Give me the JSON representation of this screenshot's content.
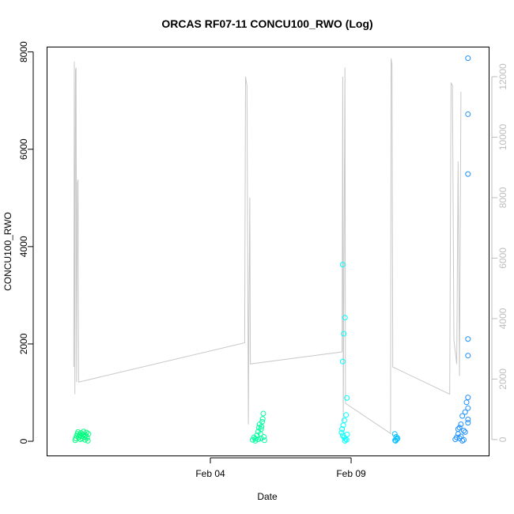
{
  "chart_data": {
    "type": "scatter",
    "title": "ORCAS RF07-11 CONCU100_RWO (Log)",
    "xlabel": "Date",
    "ylabel": "CONCU100_RWO",
    "x_ticks": [
      {
        "label": "Feb 04",
        "day": 4.0
      },
      {
        "label": "Feb 09",
        "day": 9.0
      }
    ],
    "xlim_days": [
      -1.8,
      13.9
    ],
    "ylim": [
      -300,
      8100
    ],
    "y_ticks": [
      0,
      2000,
      4000,
      6000,
      8000
    ],
    "y2lim": [
      -540,
      12980
    ],
    "y2_ticks": [
      0,
      2000,
      4000,
      6000,
      8000,
      10000,
      12000
    ],
    "y2_color": "#bdbdbd",
    "grid": false,
    "legend": "none",
    "series": [
      {
        "color": "#00ff7f",
        "points": [
          [
            -0.8,
            20
          ],
          [
            -0.78,
            60
          ],
          [
            -0.75,
            110
          ],
          [
            -0.72,
            150
          ],
          [
            -0.7,
            190
          ],
          [
            -0.68,
            80
          ],
          [
            -0.65,
            130
          ],
          [
            -0.62,
            40
          ],
          [
            -0.6,
            170
          ],
          [
            -0.58,
            100
          ],
          [
            -0.55,
            60
          ],
          [
            -0.52,
            140
          ],
          [
            -0.5,
            200
          ],
          [
            -0.48,
            90
          ],
          [
            -0.45,
            30
          ],
          [
            -0.42,
            120
          ],
          [
            -0.4,
            180
          ],
          [
            -0.38,
            70
          ],
          [
            -0.35,
            10
          ],
          [
            -0.33,
            150
          ]
        ]
      },
      {
        "color": "#00ff9f",
        "points": [
          [
            5.5,
            30
          ],
          [
            5.55,
            80
          ],
          [
            5.6,
            50
          ],
          [
            5.65,
            120
          ],
          [
            5.7,
            200
          ],
          [
            5.72,
            280
          ],
          [
            5.75,
            350
          ],
          [
            5.78,
            150
          ],
          [
            5.8,
            60
          ],
          [
            5.82,
            300
          ],
          [
            5.84,
            400
          ],
          [
            5.86,
            460
          ],
          [
            5.88,
            570
          ],
          [
            5.9,
            90
          ],
          [
            5.92,
            20
          ],
          [
            5.6,
            10
          ],
          [
            5.7,
            40
          ],
          [
            5.8,
            250
          ]
        ]
      },
      {
        "color": "#00ffff",
        "points": [
          [
            8.7,
            3630
          ],
          [
            8.74,
            2210
          ],
          [
            8.78,
            2540
          ],
          [
            8.7,
            1640
          ],
          [
            8.85,
            890
          ],
          [
            8.82,
            540
          ],
          [
            8.76,
            430
          ],
          [
            8.72,
            330
          ],
          [
            8.68,
            250
          ],
          [
            8.66,
            180
          ],
          [
            8.7,
            120
          ],
          [
            8.75,
            80
          ],
          [
            8.8,
            50
          ],
          [
            8.84,
            30
          ],
          [
            8.78,
            10
          ],
          [
            8.86,
            140
          ]
        ]
      },
      {
        "color": "#00bfff",
        "points": [
          [
            10.55,
            150
          ],
          [
            10.6,
            90
          ],
          [
            10.62,
            40
          ],
          [
            10.58,
            10
          ],
          [
            10.65,
            60
          ],
          [
            10.56,
            20
          ]
        ]
      },
      {
        "color": "#1e90ff",
        "points": [
          [
            13.15,
            7870
          ],
          [
            13.15,
            6720
          ],
          [
            13.15,
            5490
          ],
          [
            13.15,
            2100
          ],
          [
            13.15,
            1760
          ],
          [
            13.15,
            900
          ],
          [
            13.1,
            800
          ],
          [
            13.15,
            680
          ],
          [
            13.05,
            600
          ],
          [
            12.95,
            520
          ],
          [
            13.15,
            450
          ],
          [
            12.9,
            350
          ],
          [
            12.85,
            280
          ],
          [
            13.0,
            220
          ],
          [
            12.8,
            150
          ],
          [
            12.9,
            100
          ],
          [
            12.85,
            60
          ],
          [
            13.0,
            30
          ],
          [
            12.95,
            10
          ],
          [
            12.75,
            80
          ],
          [
            12.7,
            40
          ],
          [
            13.05,
            190
          ],
          [
            12.8,
            250
          ],
          [
            13.15,
            380
          ]
        ]
      }
    ],
    "trace": {
      "color": "#c8c8c8",
      "axis": "right",
      "points": [
        [
          -0.85,
          2400
        ],
        [
          -0.83,
          12500
        ],
        [
          -0.81,
          1500
        ],
        [
          -0.79,
          12200
        ],
        [
          -0.77,
          12300
        ],
        [
          -0.75,
          1900
        ],
        [
          -0.72,
          8500
        ],
        [
          -0.7,
          8600
        ],
        [
          -0.68,
          1900
        ],
        [
          5.22,
          3200
        ],
        [
          5.25,
          12000
        ],
        [
          5.3,
          11700
        ],
        [
          5.35,
          500
        ],
        [
          5.37,
          4000
        ],
        [
          5.4,
          8000
        ],
        [
          5.42,
          2500
        ],
        [
          8.68,
          2900
        ],
        [
          8.7,
          12000
        ],
        [
          8.72,
          600
        ],
        [
          8.76,
          8600
        ],
        [
          8.78,
          12300
        ],
        [
          8.8,
          1200
        ],
        [
          10.4,
          200
        ],
        [
          10.42,
          12600
        ],
        [
          10.45,
          12400
        ],
        [
          10.48,
          2400
        ],
        [
          12.5,
          1500
        ],
        [
          12.55,
          11800
        ],
        [
          12.6,
          11700
        ],
        [
          12.65,
          3300
        ],
        [
          12.75,
          2500
        ],
        [
          12.8,
          9200
        ],
        [
          12.85,
          2100
        ],
        [
          12.9,
          11500
        ]
      ]
    }
  }
}
